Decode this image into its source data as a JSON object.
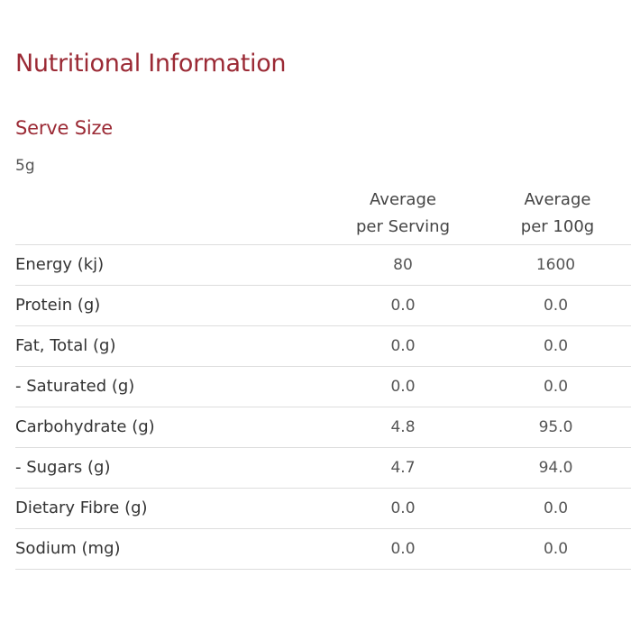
{
  "title": "Nutritional Information",
  "serve": {
    "heading": "Serve Size",
    "value": "5g"
  },
  "columns": {
    "per_serving": [
      "Average",
      "per Serving"
    ],
    "per_100g": [
      "Average",
      "per 100g"
    ]
  },
  "rows": [
    {
      "label": "Energy (kj)",
      "per_serving": "80",
      "per_100g": "1600"
    },
    {
      "label": "Protein (g)",
      "per_serving": "0.0",
      "per_100g": "0.0"
    },
    {
      "label": "Fat, Total (g)",
      "per_serving": "0.0",
      "per_100g": "0.0"
    },
    {
      "label": "- Saturated (g)",
      "per_serving": "0.0",
      "per_100g": "0.0"
    },
    {
      "label": "Carbohydrate (g)",
      "per_serving": "4.8",
      "per_100g": "95.0"
    },
    {
      "label": "- Sugars (g)",
      "per_serving": "4.7",
      "per_100g": "94.0"
    },
    {
      "label": "Dietary Fibre (g)",
      "per_serving": "0.0",
      "per_100g": "0.0"
    },
    {
      "label": "Sodium (mg)",
      "per_serving": "0.0",
      "per_100g": "0.0"
    }
  ],
  "colors": {
    "accent": "#9b2a35",
    "text": "#333333",
    "rule": "#dddddd"
  }
}
